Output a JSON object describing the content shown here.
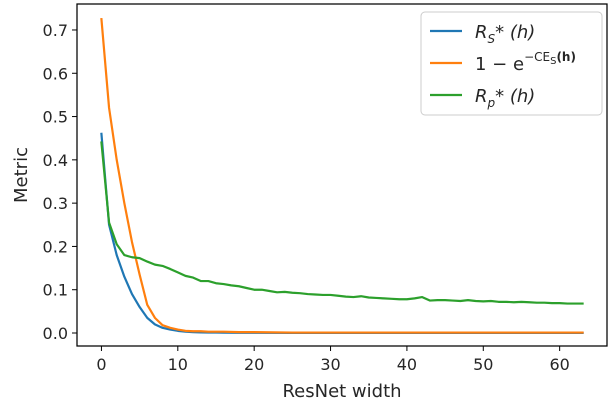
{
  "chart_data": {
    "type": "line",
    "xlabel": "ResNet width",
    "ylabel": "Metric",
    "xlim": [
      -3.2,
      66.2
    ],
    "ylim": [
      -0.03,
      0.76
    ],
    "xticks": [
      0,
      10,
      20,
      30,
      40,
      50,
      60
    ],
    "yticks": [
      0.0,
      0.1,
      0.2,
      0.3,
      0.4,
      0.5,
      0.6,
      0.7
    ],
    "xtick_labels": [
      "0",
      "10",
      "20",
      "30",
      "40",
      "50",
      "60"
    ],
    "ytick_labels": [
      "0.0",
      "0.1",
      "0.2",
      "0.3",
      "0.4",
      "0.5",
      "0.6",
      "0.7"
    ],
    "grid": false,
    "legend_position": "top-right",
    "series": [
      {
        "name": "R_S*(h)",
        "legend_main": "R",
        "legend_sub": "S",
        "legend_tail": "* (h)",
        "color": "#1f77b4",
        "x": [
          0,
          1,
          2,
          3,
          4,
          5,
          6,
          7,
          8,
          9,
          10,
          11,
          12,
          13,
          14,
          15,
          16,
          18,
          20,
          25,
          30,
          40,
          50,
          60,
          63
        ],
        "y": [
          0.46,
          0.25,
          0.18,
          0.13,
          0.09,
          0.06,
          0.035,
          0.02,
          0.012,
          0.008,
          0.005,
          0.003,
          0.002,
          0.0015,
          0.001,
          0.001,
          0.0008,
          0.0005,
          0.0005,
          0.0003,
          0.0003,
          0.0002,
          0.0002,
          0.0002,
          0.0002
        ]
      },
      {
        "name": "1 − e^(−CE_S(h))",
        "legend_main": "1 − e",
        "legend_sup": "−CE",
        "legend_sup_sub": "S",
        "legend_sup_tail": "(h)",
        "color": "#ff7f0e",
        "x": [
          0,
          1,
          2,
          3,
          4,
          5,
          6,
          7,
          8,
          9,
          10,
          11,
          12,
          13,
          14,
          15,
          16,
          18,
          20,
          25,
          30,
          40,
          50,
          60,
          63
        ],
        "y": [
          0.725,
          0.52,
          0.4,
          0.3,
          0.21,
          0.135,
          0.065,
          0.035,
          0.018,
          0.012,
          0.008,
          0.005,
          0.004,
          0.004,
          0.003,
          0.003,
          0.003,
          0.002,
          0.002,
          0.001,
          0.001,
          0.001,
          0.001,
          0.001,
          0.001
        ]
      },
      {
        "name": "R_p*(h)",
        "legend_main": "R",
        "legend_sub": "p",
        "legend_tail": "* (h)",
        "color": "#2ca02c",
        "x": [
          0,
          1,
          2,
          3,
          4,
          5,
          6,
          7,
          8,
          9,
          10,
          11,
          12,
          13,
          14,
          15,
          16,
          17,
          18,
          19,
          20,
          21,
          22,
          23,
          24,
          25,
          26,
          27,
          28,
          29,
          30,
          31,
          32,
          33,
          34,
          35,
          36,
          37,
          38,
          39,
          40,
          41,
          42,
          43,
          44,
          45,
          46,
          47,
          48,
          49,
          50,
          51,
          52,
          53,
          54,
          55,
          56,
          57,
          58,
          59,
          60,
          61,
          62,
          63
        ],
        "y": [
          0.44,
          0.255,
          0.205,
          0.18,
          0.175,
          0.173,
          0.165,
          0.158,
          0.155,
          0.148,
          0.14,
          0.132,
          0.128,
          0.12,
          0.12,
          0.115,
          0.113,
          0.11,
          0.108,
          0.104,
          0.1,
          0.1,
          0.097,
          0.094,
          0.095,
          0.093,
          0.092,
          0.09,
          0.089,
          0.088,
          0.088,
          0.086,
          0.084,
          0.083,
          0.085,
          0.082,
          0.081,
          0.08,
          0.079,
          0.078,
          0.078,
          0.08,
          0.083,
          0.075,
          0.076,
          0.076,
          0.075,
          0.074,
          0.076,
          0.074,
          0.073,
          0.074,
          0.072,
          0.072,
          0.071,
          0.072,
          0.071,
          0.07,
          0.07,
          0.069,
          0.069,
          0.068,
          0.068,
          0.068
        ]
      }
    ]
  }
}
